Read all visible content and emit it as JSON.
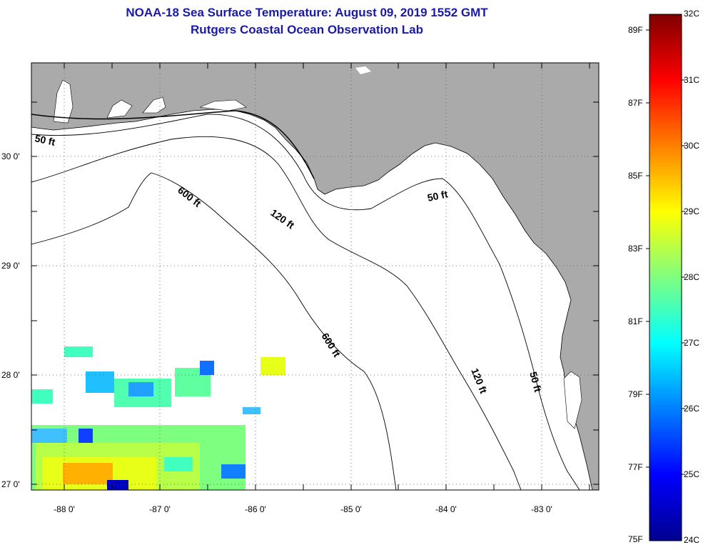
{
  "header": {
    "title_line1": "NOAA-18 Sea Surface Temperature:  August 09, 2019 1552 GMT",
    "title_line2": "Rutgers Coastal Ocean Observation Lab"
  },
  "map": {
    "lat_labels": [
      "30 0'",
      "29 0'",
      "28 0'",
      "27 0'"
    ],
    "lon_labels": [
      "-88 0'",
      "-87 0'",
      "-86 0'",
      "-85 0'",
      "-84 0'",
      "-83 0'"
    ],
    "depth_labels": [
      "50 ft",
      "600 ft",
      "120 ft",
      "50 ft",
      "600 ft",
      "120 ft",
      "50 ft"
    ],
    "colors": {
      "land": "#aaaaaa",
      "ocean": "#ffffff",
      "grid": "#555555"
    }
  },
  "colorbar": {
    "fahrenheit_labels": [
      "89F",
      "87F",
      "85F",
      "83F",
      "81F",
      "79F",
      "77F",
      "75F"
    ],
    "celsius_labels": [
      "32C",
      "31C",
      "30C",
      "29C",
      "28C",
      "27C",
      "26C",
      "25C",
      "24C"
    ],
    "range_c": [
      24,
      32
    ]
  }
}
